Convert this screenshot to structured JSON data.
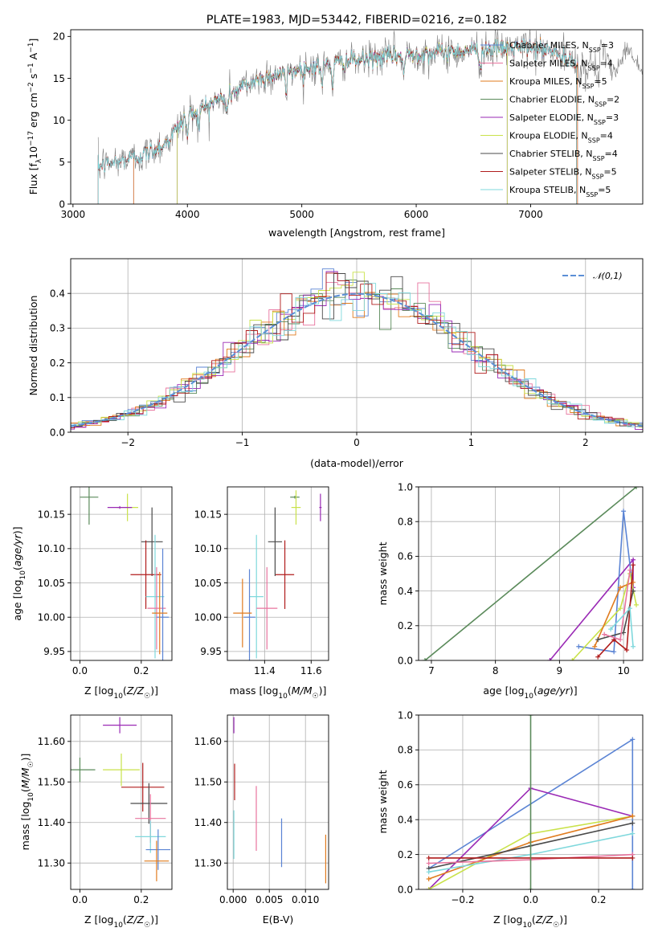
{
  "chart_data": [
    {
      "id": "spectrum",
      "type": "line",
      "title": "PLATE=1983, MJD=53442, FIBERID=0216, z=0.182",
      "xlabel": "wavelength [Angstrom, rest frame]",
      "ylabel": "Flux [f_λ 10^-17 erg cm^-2 s^-1 A^-1]",
      "xlim": [
        2980,
        7980
      ],
      "ylim": [
        0,
        20.8
      ],
      "xticks": [
        3000,
        4000,
        5000,
        6000,
        7000
      ],
      "yticks": [
        0,
        5,
        10,
        15,
        20
      ],
      "grid": false,
      "legend_position": "right",
      "continuum": {
        "x": [
          3220,
          3400,
          3600,
          3800,
          4000,
          4200,
          4400,
          4600,
          4800,
          5000,
          5200,
          5400,
          5600,
          5800,
          6000,
          6200,
          6400,
          6600,
          6800,
          7000,
          7200,
          7400
        ],
        "y": [
          4.5,
          5.1,
          5.8,
          7.1,
          10.6,
          12.0,
          13.3,
          14.8,
          15.5,
          16.1,
          16.6,
          17.0,
          17.3,
          17.7,
          17.9,
          18.1,
          18.3,
          18.5,
          18.6,
          18.7,
          18.2,
          16.5
        ]
      },
      "series": [
        {
          "name": "Chabrier MILES",
          "nssp": "3",
          "color": "#5b84d4",
          "xmin": 3530,
          "xmax": 7410
        },
        {
          "name": "Salpeter MILES",
          "nssp": "4",
          "color": "#e8749e",
          "xmin": 3530,
          "xmax": 7410
        },
        {
          "name": "Kroupa MILES",
          "nssp": "5",
          "color": "#e07b1e",
          "xmin": 3530,
          "xmax": 7410
        },
        {
          "name": "Chabrier ELODIE",
          "nssp": "2",
          "color": "#5a8a5a",
          "xmin": 3910,
          "xmax": 6795
        },
        {
          "name": "Salpeter ELODIE",
          "nssp": "3",
          "color": "#9a2ab5",
          "xmin": 3910,
          "xmax": 6795
        },
        {
          "name": "Kroupa ELODIE",
          "nssp": "4",
          "color": "#c9e24a",
          "xmin": 3910,
          "xmax": 6795
        },
        {
          "name": "Chabrier STELIB",
          "nssp": "4",
          "color": "#4a4a4a",
          "xmin": 3220,
          "xmax": 7400
        },
        {
          "name": "Salpeter STELIB",
          "nssp": "5",
          "color": "#b01c1c",
          "xmin": 3220,
          "xmax": 7400
        },
        {
          "name": "Kroupa STELIB",
          "nssp": "5",
          "color": "#7fd8dc",
          "xmin": 3220,
          "xmax": 7400
        }
      ],
      "data_series": {
        "color": "#808080",
        "xmin": 3220,
        "xmax": 7980
      }
    },
    {
      "id": "residuals",
      "type": "histogram",
      "xlabel": "(data-model)/error",
      "ylabel": "Normed distribution",
      "xlim": [
        -2.5,
        2.5
      ],
      "ylim": [
        0,
        0.5
      ],
      "xticks": [
        -2,
        -1,
        0,
        1,
        2
      ],
      "yticks": [
        0.0,
        0.1,
        0.2,
        0.3,
        0.4
      ],
      "grid": true,
      "bin_width": 0.1,
      "legend_position": "top-right",
      "reference": {
        "label": "𝒩(0,1)",
        "color": "#5b8fd6",
        "style": "dashed"
      }
    },
    {
      "id": "age-vs-Z",
      "type": "scatter",
      "xlabel": "Z [log10(Z/Z☉)]",
      "ylabel": "age [log10(age/yr)]",
      "xlim": [
        -0.03,
        0.3
      ],
      "ylim": [
        9.937,
        10.19
      ],
      "xticks": [
        0.0,
        0.2
      ],
      "yticks": [
        9.95,
        10.0,
        10.05,
        10.1,
        10.15
      ],
      "grid": true,
      "points": [
        {
          "color": "#5a8a5a",
          "x": 0.03,
          "y": 10.175,
          "xerr": 0.03,
          "yerr": 0.04
        },
        {
          "color": "#c9e24a",
          "x": 0.155,
          "y": 10.16,
          "xerr": 0.035,
          "yerr": 0.02
        },
        {
          "color": "#9a2ab5",
          "x": 0.13,
          "y": 10.16,
          "xerr": 0.04,
          "yerr": 0.002
        },
        {
          "color": "#4a4a4a",
          "x": 0.235,
          "y": 10.11,
          "xerr": 0.035,
          "yerr": 0.05
        },
        {
          "color": "#b01c1c",
          "x": 0.215,
          "y": 10.062,
          "xerr": 0.05,
          "yerr": 0.05
        },
        {
          "color": "#7fd8dc",
          "x": 0.245,
          "y": 10.03,
          "xerr": 0.03,
          "yerr": 0.09
        },
        {
          "color": "#e8749e",
          "x": 0.25,
          "y": 10.013,
          "xerr": 0.03,
          "yerr": 0.06
        },
        {
          "color": "#5b84d4",
          "x": 0.27,
          "y": 10.0,
          "xerr": 0.02,
          "yerr": 0.1
        },
        {
          "color": "#e07b1e",
          "x": 0.26,
          "y": 10.006,
          "xerr": 0.025,
          "yerr": 0.06
        }
      ]
    },
    {
      "id": "age-vs-mass",
      "type": "scatter",
      "xlabel": "mass [log10(M/M☉)]",
      "ylabel": "",
      "xlim": [
        11.24,
        11.675
      ],
      "ylim": [
        9.937,
        10.19
      ],
      "xticks": [
        11.4,
        11.6
      ],
      "yticks": [
        9.95,
        10.0,
        10.05,
        10.1,
        10.15
      ],
      "grid": true,
      "points": [
        {
          "color": "#5a8a5a",
          "x": 11.53,
          "y": 10.175,
          "xerr": 0.02,
          "yerr": 0.002
        },
        {
          "color": "#c9e24a",
          "x": 11.535,
          "y": 10.16,
          "xerr": 0.02,
          "yerr": 0.025
        },
        {
          "color": "#9a2ab5",
          "x": 11.64,
          "y": 10.16,
          "xerr": 0.005,
          "yerr": 0.02
        },
        {
          "color": "#4a4a4a",
          "x": 11.445,
          "y": 10.11,
          "xerr": 0.03,
          "yerr": 0.05
        },
        {
          "color": "#b01c1c",
          "x": 11.487,
          "y": 10.062,
          "xerr": 0.04,
          "yerr": 0.05
        },
        {
          "color": "#7fd8dc",
          "x": 11.365,
          "y": 10.03,
          "xerr": 0.03,
          "yerr": 0.09
        },
        {
          "color": "#e8749e",
          "x": 11.41,
          "y": 10.013,
          "xerr": 0.045,
          "yerr": 0.06
        },
        {
          "color": "#5b84d4",
          "x": 11.335,
          "y": 10.0,
          "xerr": 0.025,
          "yerr": 0.07
        },
        {
          "color": "#e07b1e",
          "x": 11.305,
          "y": 10.006,
          "xerr": 0.04,
          "yerr": 0.05
        }
      ]
    },
    {
      "id": "massweight-vs-age",
      "type": "line",
      "xlabel": "age [log10(age/yr)]",
      "ylabel": "mass weight",
      "xlim": [
        6.8,
        10.3
      ],
      "ylim": [
        0,
        1.0
      ],
      "xticks": [
        7,
        8,
        9,
        10
      ],
      "yticks": [
        0.0,
        0.2,
        0.4,
        0.6,
        0.8,
        1.0
      ],
      "grid": true,
      "series": [
        {
          "color": "#5a8a5a",
          "x": [
            6.9,
            10.2
          ],
          "y": [
            0.0,
            1.0
          ]
        },
        {
          "color": "#9a2ab5",
          "x": [
            8.85,
            10.15,
            10.15
          ],
          "y": [
            0.0,
            0.58,
            0.42
          ]
        },
        {
          "color": "#5b84d4",
          "x": [
            9.3,
            9.85,
            10.0,
            10.15
          ],
          "y": [
            0.08,
            0.05,
            0.86,
            0.4
          ]
        },
        {
          "color": "#c9e24a",
          "x": [
            9.2,
            9.95,
            10.1,
            10.2
          ],
          "y": [
            0.0,
            0.3,
            0.5,
            0.32
          ]
        },
        {
          "color": "#e07b1e",
          "x": [
            9.55,
            9.95,
            10.15
          ],
          "y": [
            0.08,
            0.42,
            0.45
          ]
        },
        {
          "color": "#4a4a4a",
          "x": [
            9.6,
            10.0,
            10.15
          ],
          "y": [
            0.12,
            0.16,
            0.4
          ]
        },
        {
          "color": "#b01c1c",
          "x": [
            9.6,
            9.85,
            10.05,
            10.15
          ],
          "y": [
            0.02,
            0.12,
            0.06,
            0.55
          ]
        },
        {
          "color": "#e8749e",
          "x": [
            9.7,
            9.95,
            10.1
          ],
          "y": [
            0.15,
            0.12,
            0.52
          ]
        },
        {
          "color": "#7fd8dc",
          "x": [
            9.8,
            10.1,
            10.15
          ],
          "y": [
            0.18,
            0.3,
            0.08
          ]
        }
      ]
    },
    {
      "id": "mass-vs-Z",
      "type": "scatter",
      "xlabel": "Z [log10(Z/Z☉)]",
      "ylabel": "mass [log10(M/M☉)]",
      "xlim": [
        -0.03,
        0.3
      ],
      "ylim": [
        11.235,
        11.665
      ],
      "xticks": [
        0.0,
        0.2
      ],
      "yticks": [
        11.3,
        11.4,
        11.5,
        11.6
      ],
      "grid": true,
      "points": [
        {
          "color": "#9a2ab5",
          "x": 0.13,
          "y": 11.64,
          "xerr": 0.055,
          "yerr": 0.02
        },
        {
          "color": "#5a8a5a",
          "x": 0.0,
          "y": 11.53,
          "xerr": 0.05,
          "yerr": 0.03
        },
        {
          "color": "#c9e24a",
          "x": 0.135,
          "y": 11.53,
          "xerr": 0.06,
          "yerr": 0.04
        },
        {
          "color": "#b01c1c",
          "x": 0.205,
          "y": 11.487,
          "xerr": 0.07,
          "yerr": 0.06
        },
        {
          "color": "#4a4a4a",
          "x": 0.225,
          "y": 11.447,
          "xerr": 0.06,
          "yerr": 0.05
        },
        {
          "color": "#e8749e",
          "x": 0.23,
          "y": 11.41,
          "xerr": 0.05,
          "yerr": 0.06
        },
        {
          "color": "#7fd8dc",
          "x": 0.23,
          "y": 11.365,
          "xerr": 0.05,
          "yerr": 0.04
        },
        {
          "color": "#5b84d4",
          "x": 0.255,
          "y": 11.333,
          "xerr": 0.04,
          "yerr": 0.05
        },
        {
          "color": "#e07b1e",
          "x": 0.25,
          "y": 11.305,
          "xerr": 0.04,
          "yerr": 0.05
        }
      ]
    },
    {
      "id": "mass-vs-ebv",
      "type": "scatter",
      "xlabel": "E(B-V)",
      "ylabel": "",
      "xlim": [
        -0.0008,
        0.0132
      ],
      "ylim": [
        11.235,
        11.665
      ],
      "xticks": [
        0.0,
        0.005,
        0.01
      ],
      "yticks": [
        11.3,
        11.4,
        11.5,
        11.6
      ],
      "grid": true,
      "points": [
        {
          "color": "#9a2ab5",
          "x": 0.0001,
          "y": 11.64,
          "xerr": 0,
          "yerr": 0.02
        },
        {
          "color": "#b01c1c",
          "x": 0.0002,
          "y": 11.5,
          "xerr": 0,
          "yerr": 0.045
        },
        {
          "color": "#7fd8dc",
          "x": 0.0001,
          "y": 11.37,
          "xerr": 0,
          "yerr": 0.06
        },
        {
          "color": "#e8749e",
          "x": 0.0032,
          "y": 11.41,
          "xerr": 0,
          "yerr": 0.08
        },
        {
          "color": "#5b84d4",
          "x": 0.0067,
          "y": 11.35,
          "xerr": 0,
          "yerr": 0.06
        },
        {
          "color": "#e07b1e",
          "x": 0.0128,
          "y": 11.31,
          "xerr": 0,
          "yerr": 0.06
        }
      ]
    },
    {
      "id": "massweight-vs-Z",
      "type": "line",
      "xlabel": "Z [log10(Z/Z☉)]",
      "ylabel": "mass weight",
      "xlim": [
        -0.33,
        0.33
      ],
      "ylim": [
        0,
        1.0
      ],
      "xticks": [
        -0.2,
        0.0,
        0.2
      ],
      "yticks": [
        0.0,
        0.2,
        0.4,
        0.6,
        0.8,
        1.0
      ],
      "grid": true,
      "series": [
        {
          "color": "#5b84d4",
          "x": [
            -0.3,
            0.3,
            0.3
          ],
          "y": [
            0.12,
            0.86,
            0.0
          ]
        },
        {
          "color": "#9a2ab5",
          "x": [
            -0.3,
            0.0,
            0.3
          ],
          "y": [
            0.0,
            0.58,
            0.42
          ]
        },
        {
          "color": "#c9e24a",
          "x": [
            -0.3,
            0.0,
            0.3
          ],
          "y": [
            0.0,
            0.32,
            0.42
          ]
        },
        {
          "color": "#e07b1e",
          "x": [
            -0.3,
            0.0,
            0.3
          ],
          "y": [
            0.06,
            0.27,
            0.42
          ]
        },
        {
          "color": "#4a4a4a",
          "x": [
            -0.3,
            0.0,
            0.3
          ],
          "y": [
            0.12,
            0.25,
            0.38
          ]
        },
        {
          "color": "#7fd8dc",
          "x": [
            -0.3,
            0.0,
            0.3
          ],
          "y": [
            0.1,
            0.2,
            0.32
          ]
        },
        {
          "color": "#e8749e",
          "x": [
            -0.3,
            0.0,
            0.3
          ],
          "y": [
            0.15,
            0.17,
            0.2
          ]
        },
        {
          "color": "#b01c1c",
          "x": [
            -0.3,
            0.0,
            0.3
          ],
          "y": [
            0.18,
            0.18,
            0.18
          ]
        },
        {
          "color": "#5a8a5a",
          "x": [
            0.0,
            0.0
          ],
          "y": [
            0.0,
            1.0
          ]
        }
      ]
    }
  ]
}
